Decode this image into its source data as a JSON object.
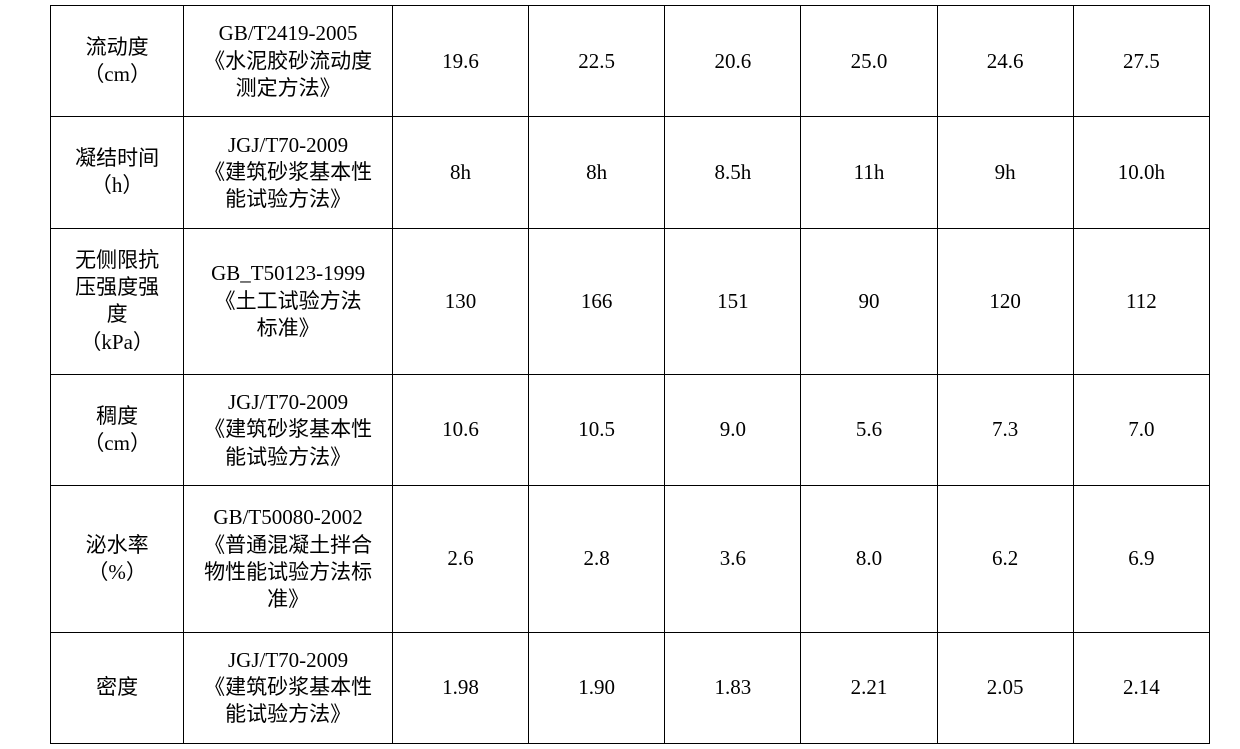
{
  "table": {
    "columns": {
      "label_width_pct": 11.5,
      "standard_width_pct": 18,
      "value_width_pct": 11.75
    },
    "font_size_pt": 16,
    "border_color": "#000000",
    "background_color": "#ffffff",
    "rows": [
      {
        "label_line1": "流动度",
        "label_line2": "（cm）",
        "standard_line1": "GB/T2419-2005",
        "standard_line2": "《水泥胶砂流动度",
        "standard_line3": "测定方法》",
        "v1": "19.6",
        "v2": "22.5",
        "v3": "20.6",
        "v4": "25.0",
        "v5": "24.6",
        "v6": "27.5"
      },
      {
        "label_line1": "凝结时间",
        "label_line2": "（h）",
        "standard_line1": "JGJ/T70-2009",
        "standard_line2": "《建筑砂浆基本性",
        "standard_line3": "能试验方法》",
        "v1": "8h",
        "v2": "8h",
        "v3": "8.5h",
        "v4": "11h",
        "v5": "9h",
        "v6": "10.0h"
      },
      {
        "label_line1": "无侧限抗",
        "label_line2": "压强度强",
        "label_line3": "度",
        "label_line4": "（kPa）",
        "standard_line1": "GB_T50123-1999",
        "standard_line2": "《土工试验方法",
        "standard_line3": "标准》",
        "v1": "130",
        "v2": "166",
        "v3": "151",
        "v4": "90",
        "v5": "120",
        "v6": "112"
      },
      {
        "label_line1": "稠度",
        "label_line2": "（cm）",
        "standard_line1": "JGJ/T70-2009",
        "standard_line2": "《建筑砂浆基本性",
        "standard_line3": "能试验方法》",
        "v1": "10.6",
        "v2": "10.5",
        "v3": "9.0",
        "v4": "5.6",
        "v5": "7.3",
        "v6": "7.0"
      },
      {
        "label_line1": "泌水率",
        "label_line2": "（%）",
        "standard_line1": "GB/T50080-2002",
        "standard_line2": "《普通混凝土拌合",
        "standard_line3": "物性能试验方法标",
        "standard_line4": "准》",
        "v1": "2.6",
        "v2": "2.8",
        "v3": "3.6",
        "v4": "8.0",
        "v5": "6.2",
        "v6": "6.9"
      },
      {
        "label_line1": "密度",
        "standard_line1": "JGJ/T70-2009",
        "standard_line2": "《建筑砂浆基本性",
        "standard_line3": "能试验方法》",
        "v1": "1.98",
        "v2": "1.90",
        "v3": "1.83",
        "v4": "2.21",
        "v5": "2.05",
        "v6": "2.14"
      }
    ]
  }
}
